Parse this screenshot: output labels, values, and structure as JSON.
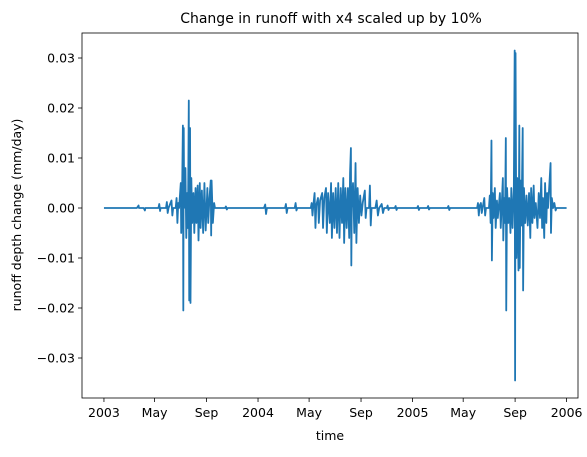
{
  "chart_data": {
    "type": "line",
    "title": "Change in runoff with x4 scaled up by 10%",
    "xlabel": "time",
    "ylabel": "runoff depth change (mm/day)",
    "xlim": [
      "2003-01-01",
      "2006-01-01"
    ],
    "ylim": [
      -0.038,
      0.035
    ],
    "x_ticks": [
      {
        "date": "2003-01-01",
        "label": "2003"
      },
      {
        "date": "2003-05-01",
        "label": "May"
      },
      {
        "date": "2003-09-01",
        "label": "Sep"
      },
      {
        "date": "2004-01-01",
        "label": "2004"
      },
      {
        "date": "2004-05-01",
        "label": "May"
      },
      {
        "date": "2004-09-01",
        "label": "Sep"
      },
      {
        "date": "2005-01-01",
        "label": "2005"
      },
      {
        "date": "2005-05-01",
        "label": "May"
      },
      {
        "date": "2005-09-01",
        "label": "Sep"
      },
      {
        "date": "2006-01-01",
        "label": "2006"
      }
    ],
    "y_ticks": [
      {
        "value": 0.03,
        "label": "0.03"
      },
      {
        "value": 0.02,
        "label": "0.02"
      },
      {
        "value": 0.01,
        "label": "0.01"
      },
      {
        "value": 0.0,
        "label": "0.00"
      },
      {
        "value": -0.01,
        "label": "−0.01"
      },
      {
        "value": -0.02,
        "label": "−0.02"
      },
      {
        "value": -0.03,
        "label": "−0.03"
      }
    ],
    "grid": false,
    "line_color": "#1f77b4",
    "series": [
      {
        "points": [
          [
            "2003-01-01",
            0.0
          ],
          [
            "2003-03-20",
            0.0
          ],
          [
            "2003-03-24",
            0.0005
          ],
          [
            "2003-03-25",
            0.0
          ],
          [
            "2003-04-05",
            0.0
          ],
          [
            "2003-04-08",
            -0.0005
          ],
          [
            "2003-04-09",
            0.0
          ],
          [
            "2003-05-10",
            0.0
          ],
          [
            "2003-05-12",
            0.0008
          ],
          [
            "2003-05-14",
            -0.0006
          ],
          [
            "2003-05-15",
            0.0
          ],
          [
            "2003-05-28",
            0.0
          ],
          [
            "2003-05-30",
            0.0012
          ],
          [
            "2003-06-01",
            -0.001
          ],
          [
            "2003-06-03",
            0.0
          ],
          [
            "2003-06-10",
            0.0015
          ],
          [
            "2003-06-12",
            -0.0015
          ],
          [
            "2003-06-14",
            0.0
          ],
          [
            "2003-06-20",
            0.0
          ],
          [
            "2003-06-22",
            0.002
          ],
          [
            "2003-06-24",
            -0.003
          ],
          [
            "2003-06-26",
            0.001
          ],
          [
            "2003-06-28",
            0.0
          ],
          [
            "2003-07-02",
            0.005
          ],
          [
            "2003-07-03",
            -0.005
          ],
          [
            "2003-07-05",
            0.002
          ],
          [
            "2003-07-07",
            0.0165
          ],
          [
            "2003-07-08",
            -0.0205
          ],
          [
            "2003-07-09",
            0.016
          ],
          [
            "2003-07-10",
            0.0
          ],
          [
            "2003-07-13",
            0.008
          ],
          [
            "2003-07-15",
            -0.006
          ],
          [
            "2003-07-17",
            0.003
          ],
          [
            "2003-07-19",
            -0.004
          ],
          [
            "2003-07-21",
            0.0215
          ],
          [
            "2003-07-22",
            -0.0185
          ],
          [
            "2003-07-24",
            0.016
          ],
          [
            "2003-07-25",
            -0.019
          ],
          [
            "2003-07-27",
            0.006
          ],
          [
            "2003-07-29",
            -0.003
          ],
          [
            "2003-08-01",
            0.003
          ],
          [
            "2003-08-03",
            -0.005
          ],
          [
            "2003-08-06",
            0.004
          ],
          [
            "2003-08-08",
            -0.003
          ],
          [
            "2003-08-11",
            0.0045
          ],
          [
            "2003-08-13",
            -0.0065
          ],
          [
            "2003-08-16",
            0.005
          ],
          [
            "2003-08-18",
            -0.004
          ],
          [
            "2003-08-21",
            0.0035
          ],
          [
            "2003-08-24",
            -0.005
          ],
          [
            "2003-08-27",
            0.005
          ],
          [
            "2003-08-30",
            -0.0045
          ],
          [
            "2003-09-03",
            0.004
          ],
          [
            "2003-09-05",
            -0.003
          ],
          [
            "2003-09-08",
            0.002
          ],
          [
            "2003-09-11",
            0.0055
          ],
          [
            "2003-09-12",
            -0.0055
          ],
          [
            "2003-09-13",
            0.0055
          ],
          [
            "2003-09-16",
            -0.003
          ],
          [
            "2003-09-19",
            0.001
          ],
          [
            "2003-09-21",
            0.0
          ],
          [
            "2003-10-15",
            0.0
          ],
          [
            "2003-10-17",
            0.0003
          ],
          [
            "2003-10-19",
            -0.0003
          ],
          [
            "2003-10-21",
            0.0
          ],
          [
            "2004-01-15",
            0.0
          ],
          [
            "2004-01-18",
            0.0007
          ],
          [
            "2004-01-20",
            -0.0012
          ],
          [
            "2004-01-22",
            0.0
          ],
          [
            "2004-03-05",
            0.0
          ],
          [
            "2004-03-07",
            0.0008
          ],
          [
            "2004-03-09",
            -0.001
          ],
          [
            "2004-03-11",
            0.0
          ],
          [
            "2004-03-28",
            0.0
          ],
          [
            "2004-03-30",
            0.001
          ],
          [
            "2004-04-01",
            -0.0005
          ],
          [
            "2004-04-03",
            0.0
          ],
          [
            "2004-05-05",
            0.0
          ],
          [
            "2004-05-07",
            0.001
          ],
          [
            "2004-05-09",
            -0.0015
          ],
          [
            "2004-05-11",
            0.0005
          ],
          [
            "2004-05-14",
            0.003
          ],
          [
            "2004-05-16",
            -0.004
          ],
          [
            "2004-05-18",
            0.0005
          ],
          [
            "2004-05-22",
            0.002
          ],
          [
            "2004-05-24",
            -0.003
          ],
          [
            "2004-05-27",
            0.0015
          ],
          [
            "2004-06-01",
            0.003
          ],
          [
            "2004-06-03",
            -0.004
          ],
          [
            "2004-06-06",
            0.002
          ],
          [
            "2004-06-10",
            0.004
          ],
          [
            "2004-06-12",
            -0.005
          ],
          [
            "2004-06-15",
            0.003
          ],
          [
            "2004-06-19",
            -0.003
          ],
          [
            "2004-06-22",
            0.005
          ],
          [
            "2004-06-24",
            -0.006
          ],
          [
            "2004-06-27",
            0.003
          ],
          [
            "2004-06-30",
            -0.004
          ],
          [
            "2004-07-03",
            0.004
          ],
          [
            "2004-07-06",
            -0.005
          ],
          [
            "2004-07-09",
            0.005
          ],
          [
            "2004-07-12",
            -0.006
          ],
          [
            "2004-07-15",
            0.004
          ],
          [
            "2004-07-18",
            -0.003
          ],
          [
            "2004-07-21",
            0.006
          ],
          [
            "2004-07-23",
            -0.007
          ],
          [
            "2004-07-26",
            0.004
          ],
          [
            "2004-07-29",
            -0.004
          ],
          [
            "2004-08-01",
            0.004
          ],
          [
            "2004-08-04",
            -0.006
          ],
          [
            "2004-08-06",
            0.007
          ],
          [
            "2004-08-08",
            0.012
          ],
          [
            "2004-08-09",
            -0.0115
          ],
          [
            "2004-08-10",
            0.0
          ],
          [
            "2004-08-13",
            0.005
          ],
          [
            "2004-08-16",
            -0.005
          ],
          [
            "2004-08-19",
            0.009
          ],
          [
            "2004-08-21",
            -0.007
          ],
          [
            "2004-08-24",
            0.004
          ],
          [
            "2004-08-27",
            -0.003
          ],
          [
            "2004-08-30",
            0.0025
          ],
          [
            "2004-09-02",
            -0.0015
          ],
          [
            "2004-09-05",
            0.001
          ],
          [
            "2004-09-10",
            0.0035
          ],
          [
            "2004-09-12",
            -0.002
          ],
          [
            "2004-09-14",
            0.0
          ],
          [
            "2004-09-20",
            0.0
          ],
          [
            "2004-09-22",
            0.0045
          ],
          [
            "2004-09-24",
            -0.0035
          ],
          [
            "2004-09-26",
            0.0
          ],
          [
            "2004-10-05",
            0.0
          ],
          [
            "2004-10-08",
            0.0015
          ],
          [
            "2004-10-11",
            -0.0015
          ],
          [
            "2004-10-14",
            0.0
          ],
          [
            "2004-10-20",
            0.0008
          ],
          [
            "2004-10-23",
            -0.001
          ],
          [
            "2004-10-26",
            0.0
          ],
          [
            "2004-11-01",
            0.0
          ],
          [
            "2004-11-03",
            0.0005
          ],
          [
            "2004-11-05",
            -0.0004
          ],
          [
            "2004-11-07",
            0.0
          ],
          [
            "2004-11-20",
            0.0
          ],
          [
            "2004-11-22",
            0.0004
          ],
          [
            "2004-11-24",
            -0.0004
          ],
          [
            "2004-11-26",
            0.0
          ],
          [
            "2005-01-12",
            0.0
          ],
          [
            "2005-01-14",
            0.0004
          ],
          [
            "2005-01-16",
            -0.0004
          ],
          [
            "2005-01-18",
            0.0
          ],
          [
            "2005-02-05",
            0.0
          ],
          [
            "2005-02-07",
            0.0004
          ],
          [
            "2005-02-09",
            -0.0003
          ],
          [
            "2005-02-11",
            0.0
          ],
          [
            "2005-03-25",
            0.0
          ],
          [
            "2005-03-27",
            0.0004
          ],
          [
            "2005-03-29",
            -0.0004
          ],
          [
            "2005-03-31",
            0.0
          ],
          [
            "2005-06-03",
            0.0
          ],
          [
            "2005-06-05",
            0.001
          ],
          [
            "2005-06-07",
            -0.0015
          ],
          [
            "2005-06-09",
            0.0005
          ],
          [
            "2005-06-12",
            0.001
          ],
          [
            "2005-06-14",
            -0.001
          ],
          [
            "2005-06-16",
            0.0
          ],
          [
            "2005-06-20",
            0.002
          ],
          [
            "2005-06-22",
            -0.0015
          ],
          [
            "2005-06-24",
            0.0
          ],
          [
            "2005-07-01",
            0.0
          ],
          [
            "2005-07-03",
            0.0025
          ],
          [
            "2005-07-05",
            -0.003
          ],
          [
            "2005-07-07",
            0.0135
          ],
          [
            "2005-07-08",
            -0.0105
          ],
          [
            "2005-07-10",
            0.003
          ],
          [
            "2005-07-12",
            -0.002
          ],
          [
            "2005-07-15",
            0.004
          ],
          [
            "2005-07-17",
            -0.004
          ],
          [
            "2005-07-20",
            0.0015
          ],
          [
            "2005-07-22",
            -0.002
          ],
          [
            "2005-07-24",
            0.0
          ],
          [
            "2005-07-27",
            0.003
          ],
          [
            "2005-07-29",
            -0.004
          ],
          [
            "2005-07-31",
            0.0
          ],
          [
            "2005-08-03",
            0.006
          ],
          [
            "2005-08-04",
            -0.0065
          ],
          [
            "2005-08-06",
            0.002
          ],
          [
            "2005-08-08",
            -0.003
          ],
          [
            "2005-08-10",
            0.014
          ],
          [
            "2005-08-11",
            -0.0205
          ],
          [
            "2005-08-13",
            0.004
          ],
          [
            "2005-08-16",
            -0.003
          ],
          [
            "2005-08-18",
            0.002
          ],
          [
            "2005-08-21",
            -0.005
          ],
          [
            "2005-08-23",
            0.004
          ],
          [
            "2005-08-26",
            -0.004
          ],
          [
            "2005-08-29",
            0.004
          ],
          [
            "2005-08-31",
            0.0315
          ],
          [
            "2005-09-01",
            -0.0345
          ],
          [
            "2005-09-02",
            0.031
          ],
          [
            "2005-09-04",
            -0.01
          ],
          [
            "2005-09-06",
            0.006
          ],
          [
            "2005-09-09",
            -0.0125
          ],
          [
            "2005-09-11",
            0.0165
          ],
          [
            "2005-09-12",
            -0.012
          ],
          [
            "2005-09-14",
            0.0055
          ],
          [
            "2005-09-16",
            -0.0035
          ],
          [
            "2005-09-19",
            0.016
          ],
          [
            "2005-09-20",
            -0.0165
          ],
          [
            "2005-09-22",
            0.004
          ],
          [
            "2005-09-25",
            -0.003
          ],
          [
            "2005-09-28",
            0.0025
          ],
          [
            "2005-10-01",
            -0.0035
          ],
          [
            "2005-10-04",
            0.003
          ],
          [
            "2005-10-07",
            -0.006
          ],
          [
            "2005-10-09",
            0.004
          ],
          [
            "2005-10-12",
            -0.003
          ],
          [
            "2005-10-15",
            0.0045
          ],
          [
            "2005-10-17",
            -0.002
          ],
          [
            "2005-10-20",
            0.001
          ],
          [
            "2005-10-24",
            -0.004
          ],
          [
            "2005-10-27",
            0.003
          ],
          [
            "2005-10-30",
            -0.002
          ],
          [
            "2005-11-02",
            0.006
          ],
          [
            "2005-11-04",
            -0.004
          ],
          [
            "2005-11-06",
            0.002
          ],
          [
            "2005-11-09",
            -0.006
          ],
          [
            "2005-11-11",
            0.005
          ],
          [
            "2005-11-14",
            -0.003
          ],
          [
            "2005-11-16",
            0.003
          ],
          [
            "2005-11-18",
            0.0
          ],
          [
            "2005-11-24",
            0.009
          ],
          [
            "2005-11-25",
            -0.005
          ],
          [
            "2005-11-27",
            0.002
          ],
          [
            "2005-11-30",
            0.0
          ],
          [
            "2005-12-03",
            0.001
          ],
          [
            "2005-12-06",
            -0.0005
          ],
          [
            "2005-12-08",
            0.0
          ],
          [
            "2006-01-01",
            0.0
          ]
        ]
      }
    ]
  }
}
